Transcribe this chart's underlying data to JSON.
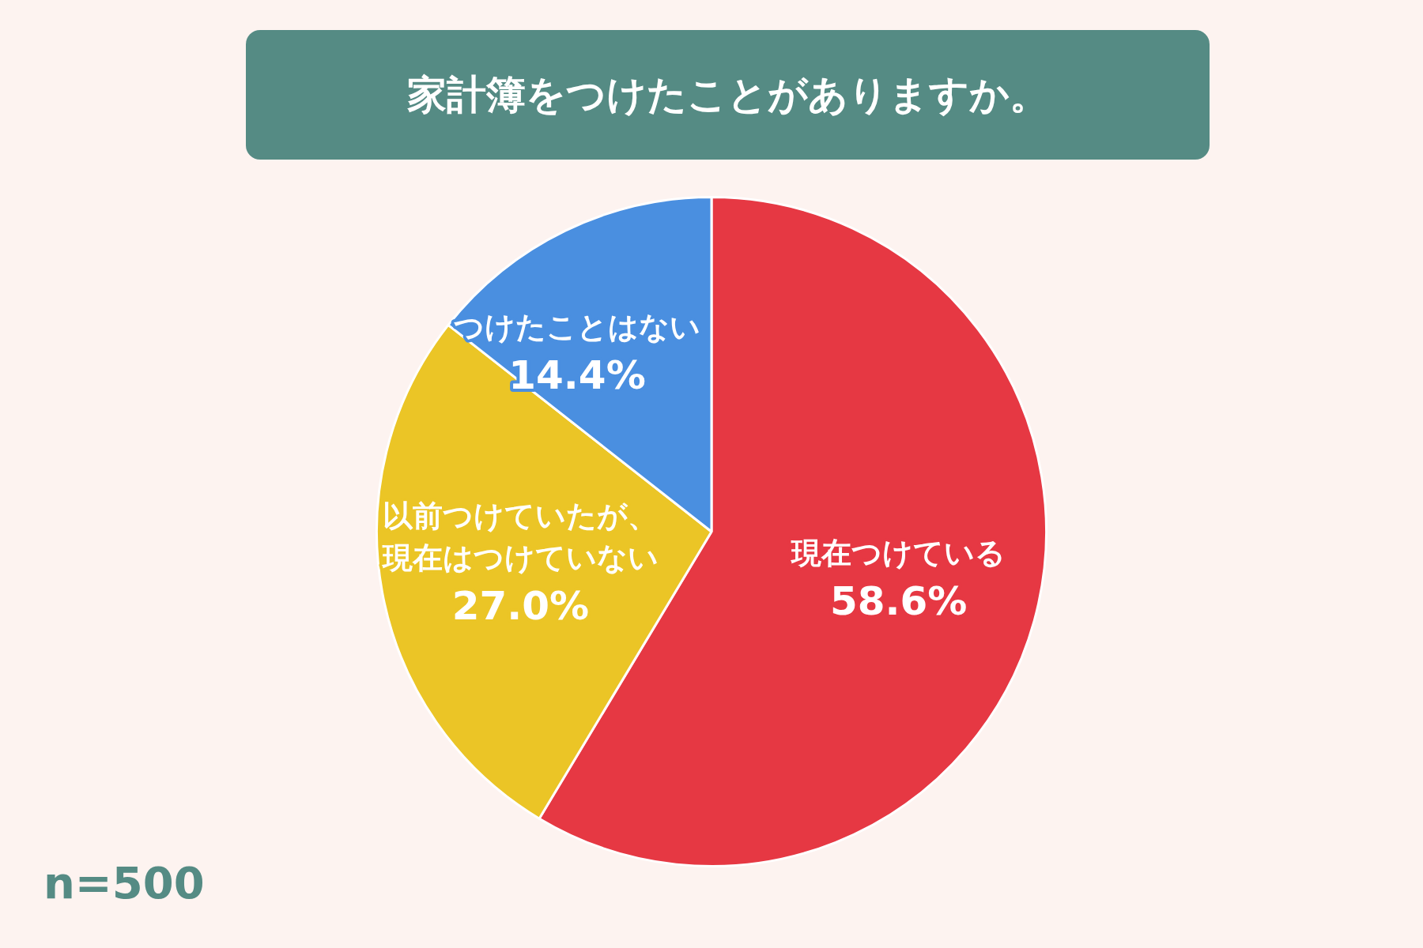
{
  "chart_data": {
    "type": "pie",
    "title": "家計簿をつけたことがありますか。",
    "categories": [
      "現在つけている",
      "以前つけていたが、現在はつけていない",
      "つけたことはない"
    ],
    "values": [
      58.6,
      27.0,
      14.4
    ],
    "colors": [
      "#e63843",
      "#ebc526",
      "#4a8fe0"
    ],
    "value_labels": [
      "58.6%",
      "27.0%",
      "14.4%"
    ],
    "annotations": [
      "n=500"
    ],
    "legend": false
  }
}
